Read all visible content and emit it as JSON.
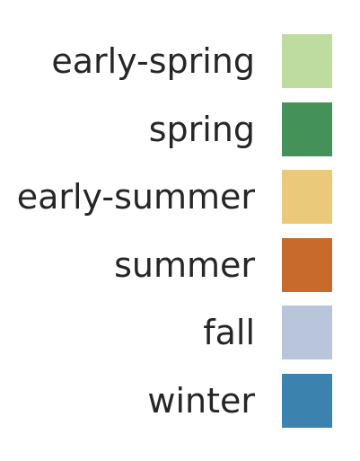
{
  "chart_data": {
    "type": "legend",
    "items": [
      {
        "label": "early-spring",
        "color": "#bfdca0"
      },
      {
        "label": "spring",
        "color": "#449159"
      },
      {
        "label": "early-summer",
        "color": "#eac97a"
      },
      {
        "label": "summer",
        "color": "#c86a2b"
      },
      {
        "label": "fall",
        "color": "#b8c5da"
      },
      {
        "label": "winter",
        "color": "#3b83ae"
      }
    ]
  }
}
